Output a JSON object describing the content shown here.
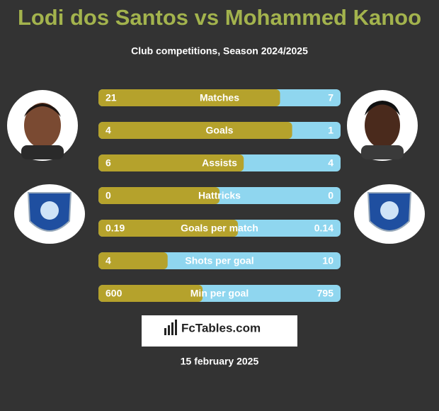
{
  "header": {
    "title": "Lodi dos Santos vs Mohammed Kanoo",
    "subtitle": "Club competitions, Season 2024/2025"
  },
  "rows": [
    {
      "label": "Matches",
      "left": 21,
      "right": 7
    },
    {
      "label": "Goals",
      "left": 4,
      "right": 1
    },
    {
      "label": "Assists",
      "left": 6,
      "right": 4
    },
    {
      "label": "Hattricks",
      "left": 0,
      "right": 0
    },
    {
      "label": "Goals per match",
      "left": 0.19,
      "right": 0.14
    },
    {
      "label": "Shots per goal",
      "left": 4,
      "right": 10
    },
    {
      "label": "Min per goal",
      "left": 600,
      "right": 795
    }
  ],
  "colors": {
    "left": "#b5a22c",
    "right": "#8fd6ef"
  },
  "brand": "FcTables.com",
  "date": "15 february 2025"
}
